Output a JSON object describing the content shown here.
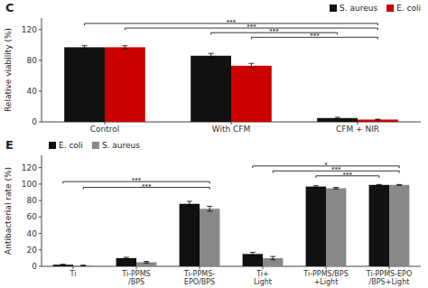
{
  "chart_data": [
    {
      "type": "bar",
      "title": "C",
      "categories": [
        "Control",
        "With CFM",
        "CFM + NIR"
      ],
      "series": [
        {
          "name": "S. aureus",
          "color": "#111111",
          "values": [
            97,
            86,
            5
          ],
          "errors": [
            2,
            3,
            1
          ]
        },
        {
          "name": "E. coli",
          "color": "#cc0000",
          "values": [
            97,
            73,
            3
          ],
          "errors": [
            2,
            3,
            0.5
          ]
        }
      ],
      "ylabel": "Relative viability (%)",
      "ylim": [
        0,
        135
      ],
      "yticks": [
        0,
        40,
        80,
        120
      ],
      "legend": "upper right",
      "annotations": [
        {
          "text": "***",
          "y": 128,
          "from": {
            "category": "Control",
            "series": "S. aureus"
          },
          "to": {
            "category": "CFM + NIR",
            "series": "E. coli"
          }
        },
        {
          "text": "***",
          "y": 122,
          "from": {
            "category": "Control",
            "series": "E. coli"
          },
          "to": {
            "category": "CFM + NIR",
            "series": "E. coli"
          }
        },
        {
          "text": "***",
          "y": 116,
          "from": {
            "category": "With CFM",
            "series": "S. aureus"
          },
          "to": {
            "category": "CFM + NIR",
            "series": "S. aureus"
          }
        },
        {
          "text": "***",
          "y": 110,
          "from": {
            "category": "With CFM",
            "series": "E. coli"
          },
          "to": {
            "category": "CFM + NIR",
            "series": "E. coli"
          }
        }
      ]
    },
    {
      "type": "bar",
      "title": "E",
      "categories": [
        "Ti",
        "Ti-PPMS\n/BPS",
        "Ti-PPMS-\nEPO/BPS",
        "Ti+\nLight",
        "Ti-PPMS/BPS\n+Light",
        "Ti-PPMS-EPO\n/BPS+Light"
      ],
      "series": [
        {
          "name": "E. coli",
          "color": "#111111",
          "values": [
            2,
            10,
            76,
            15,
            97,
            99
          ],
          "errors": [
            0.5,
            1,
            3,
            2,
            1,
            0.5
          ]
        },
        {
          "name": "S. aureus",
          "color": "#888888",
          "values": [
            1,
            5,
            70,
            10,
            95,
            99
          ],
          "errors": [
            0.5,
            1,
            3,
            2,
            1,
            0.5
          ]
        }
      ],
      "ylabel": "Antibacterial rate (%)",
      "ylim": [
        0,
        135
      ],
      "yticks": [
        0,
        20,
        40,
        60,
        80,
        100,
        120
      ],
      "legend": "upper left",
      "annotations": [
        {
          "text": "***",
          "y": 103,
          "from": {
            "category": "Ti",
            "series": "E. coli"
          },
          "to": {
            "category": "Ti-PPMS-\nEPO/BPS",
            "series": "S. aureus"
          }
        },
        {
          "text": "***",
          "y": 96,
          "from": {
            "category": "Ti",
            "series": "S. aureus"
          },
          "to": {
            "category": "Ti-PPMS-\nEPO/BPS",
            "series": "S. aureus"
          }
        },
        {
          "text": "*",
          "y": 122,
          "from": {
            "category": "Ti+\nLight",
            "series": "E. coli"
          },
          "to": {
            "category": "Ti-PPMS-EPO\n/BPS+Light",
            "series": "S. aureus"
          }
        },
        {
          "text": "***",
          "y": 116,
          "from": {
            "category": "Ti+\nLight",
            "series": "S. aureus"
          },
          "to": {
            "category": "Ti-PPMS-EPO\n/BPS+Light",
            "series": "S. aureus"
          }
        },
        {
          "text": "***",
          "y": 110,
          "from": {
            "category": "Ti-PPMS/BPS\n+Light",
            "series": "E. coli"
          },
          "to": {
            "category": "Ti-PPMS-EPO\n/BPS+Light",
            "series": "E. coli"
          }
        }
      ]
    }
  ]
}
